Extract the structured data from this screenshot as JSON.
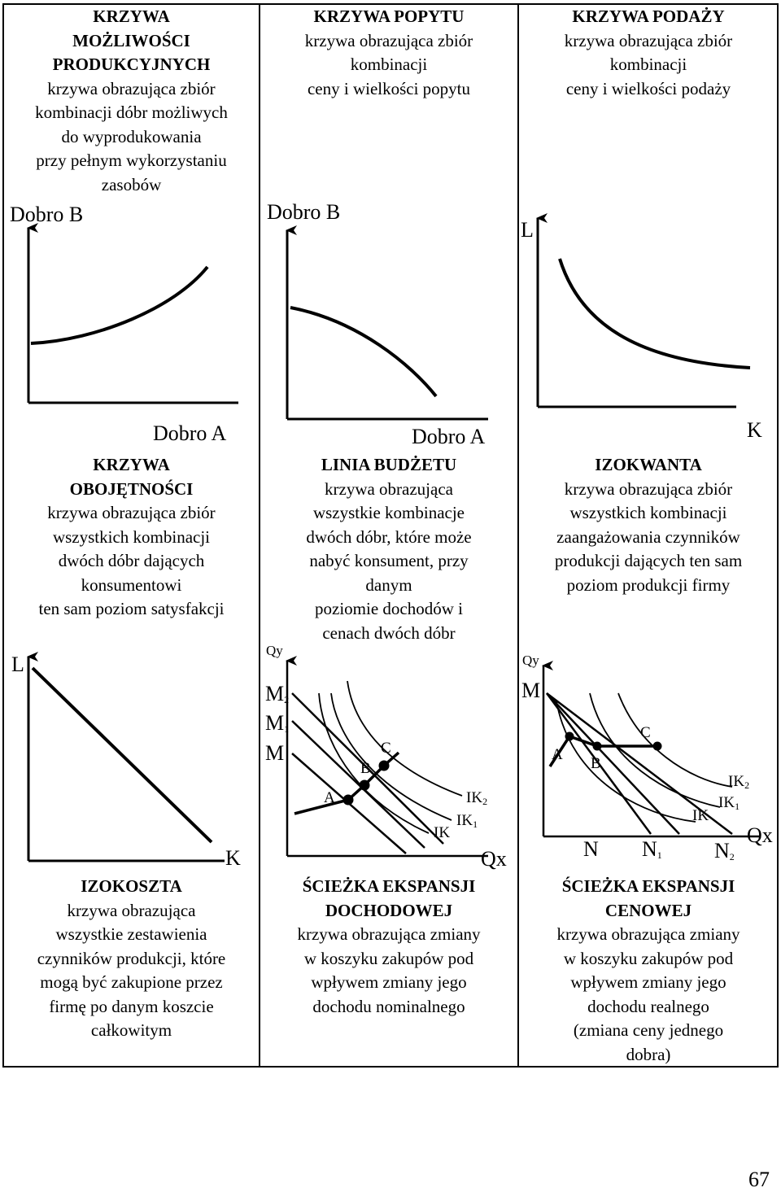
{
  "cells": {
    "ppf": {
      "title1": "KRZYWA",
      "title2": "MOŻLIWOŚCI",
      "title3": "PRODUKCYJNYCH",
      "desc": [
        "krzywa obrazująca zbiór",
        "kombinacji dóbr możliwych",
        "do wyprodukowania",
        "przy pełnym wykorzystaniu",
        "zasobów"
      ],
      "ylabel": "Dobro B",
      "xlabel": "Dobro A"
    },
    "demand": {
      "title": "KRZYWA POPYTU",
      "desc": [
        "krzywa obrazująca zbiór",
        "kombinacji",
        "ceny i wielkości popytu"
      ],
      "ylabel": "Dobro B",
      "xlabel": "Dobro A"
    },
    "supply": {
      "title": "KRZYWA PODAŻY",
      "desc": [
        "krzywa obrazująca zbiór",
        "kombinacji",
        "ceny i wielkości podaży"
      ],
      "ylabel": "L",
      "xlabel": "K"
    },
    "indifference": {
      "title1": "KRZYWA",
      "title2": "OBOJĘTNOŚCI",
      "desc": [
        "krzywa obrazująca zbiór",
        "wszystkich kombinacji",
        "dwóch dóbr dających",
        "konsumentowi",
        "ten sam poziom satysfakcji"
      ],
      "ylabel": "L",
      "xlabel": "K"
    },
    "budget": {
      "title": "LINIA BUDŻETU",
      "desc": [
        "krzywa obrazująca",
        "wszystkie kombinacje",
        "dwóch dóbr, które może",
        "nabyć konsument, przy",
        "danym",
        "poziomie dochodów i",
        "cenach dwóch dóbr"
      ],
      "ylabel": "Qy",
      "xlabel": "Qx",
      "m_labels": [
        "M",
        "M",
        "M"
      ],
      "m_subs": [
        "2",
        "1",
        ""
      ],
      "points": [
        "A",
        "B",
        "C"
      ],
      "ik_labels": [
        "IK",
        "IK",
        "IK"
      ],
      "ik_subs": [
        "2",
        "1",
        ""
      ]
    },
    "isoquant": {
      "title": "IZOKWANTA",
      "desc": [
        "krzywa obrazująca zbiór",
        "wszystkich kombinacji",
        "zaangażowania czynników",
        "produkcji dających ten sam",
        "poziom produkcji firmy"
      ],
      "ylabel": "Qy",
      "xlabel": "Qx",
      "m_label": "M",
      "points": [
        "A",
        "B",
        "C"
      ],
      "ik_labels": [
        "IK",
        "IK",
        "IK"
      ],
      "ik_subs": [
        "2",
        "1",
        ""
      ],
      "n_labels": [
        "N",
        "N",
        "N"
      ],
      "n_subs": [
        "",
        "1",
        "2"
      ]
    },
    "isocost": {
      "title": "IZOKOSZTA",
      "desc": [
        "krzywa obrazująca",
        "wszystkie zestawienia",
        "czynników produkcji, które",
        "mogą być zakupione przez",
        "firmę po danym koszcie",
        "całkowitym"
      ]
    },
    "income_path": {
      "title1": "ŚCIEŻKA EKSPANSJI",
      "title2": "DOCHODOWEJ",
      "desc": [
        "krzywa obrazująca zmiany",
        "w koszyku zakupów pod",
        "wpływem zmiany jego",
        "dochodu nominalnego"
      ]
    },
    "price_path": {
      "title1": "ŚCIEŻKA EKSPANSJI",
      "title2": "CENOWEJ",
      "desc": [
        "krzywa obrazująca zmiany",
        "w koszyku zakupów pod",
        "wpływem zmiany jego",
        "dochodu realnego",
        "(zmiana ceny jednego",
        "dobra)"
      ]
    }
  },
  "page_number": "67"
}
